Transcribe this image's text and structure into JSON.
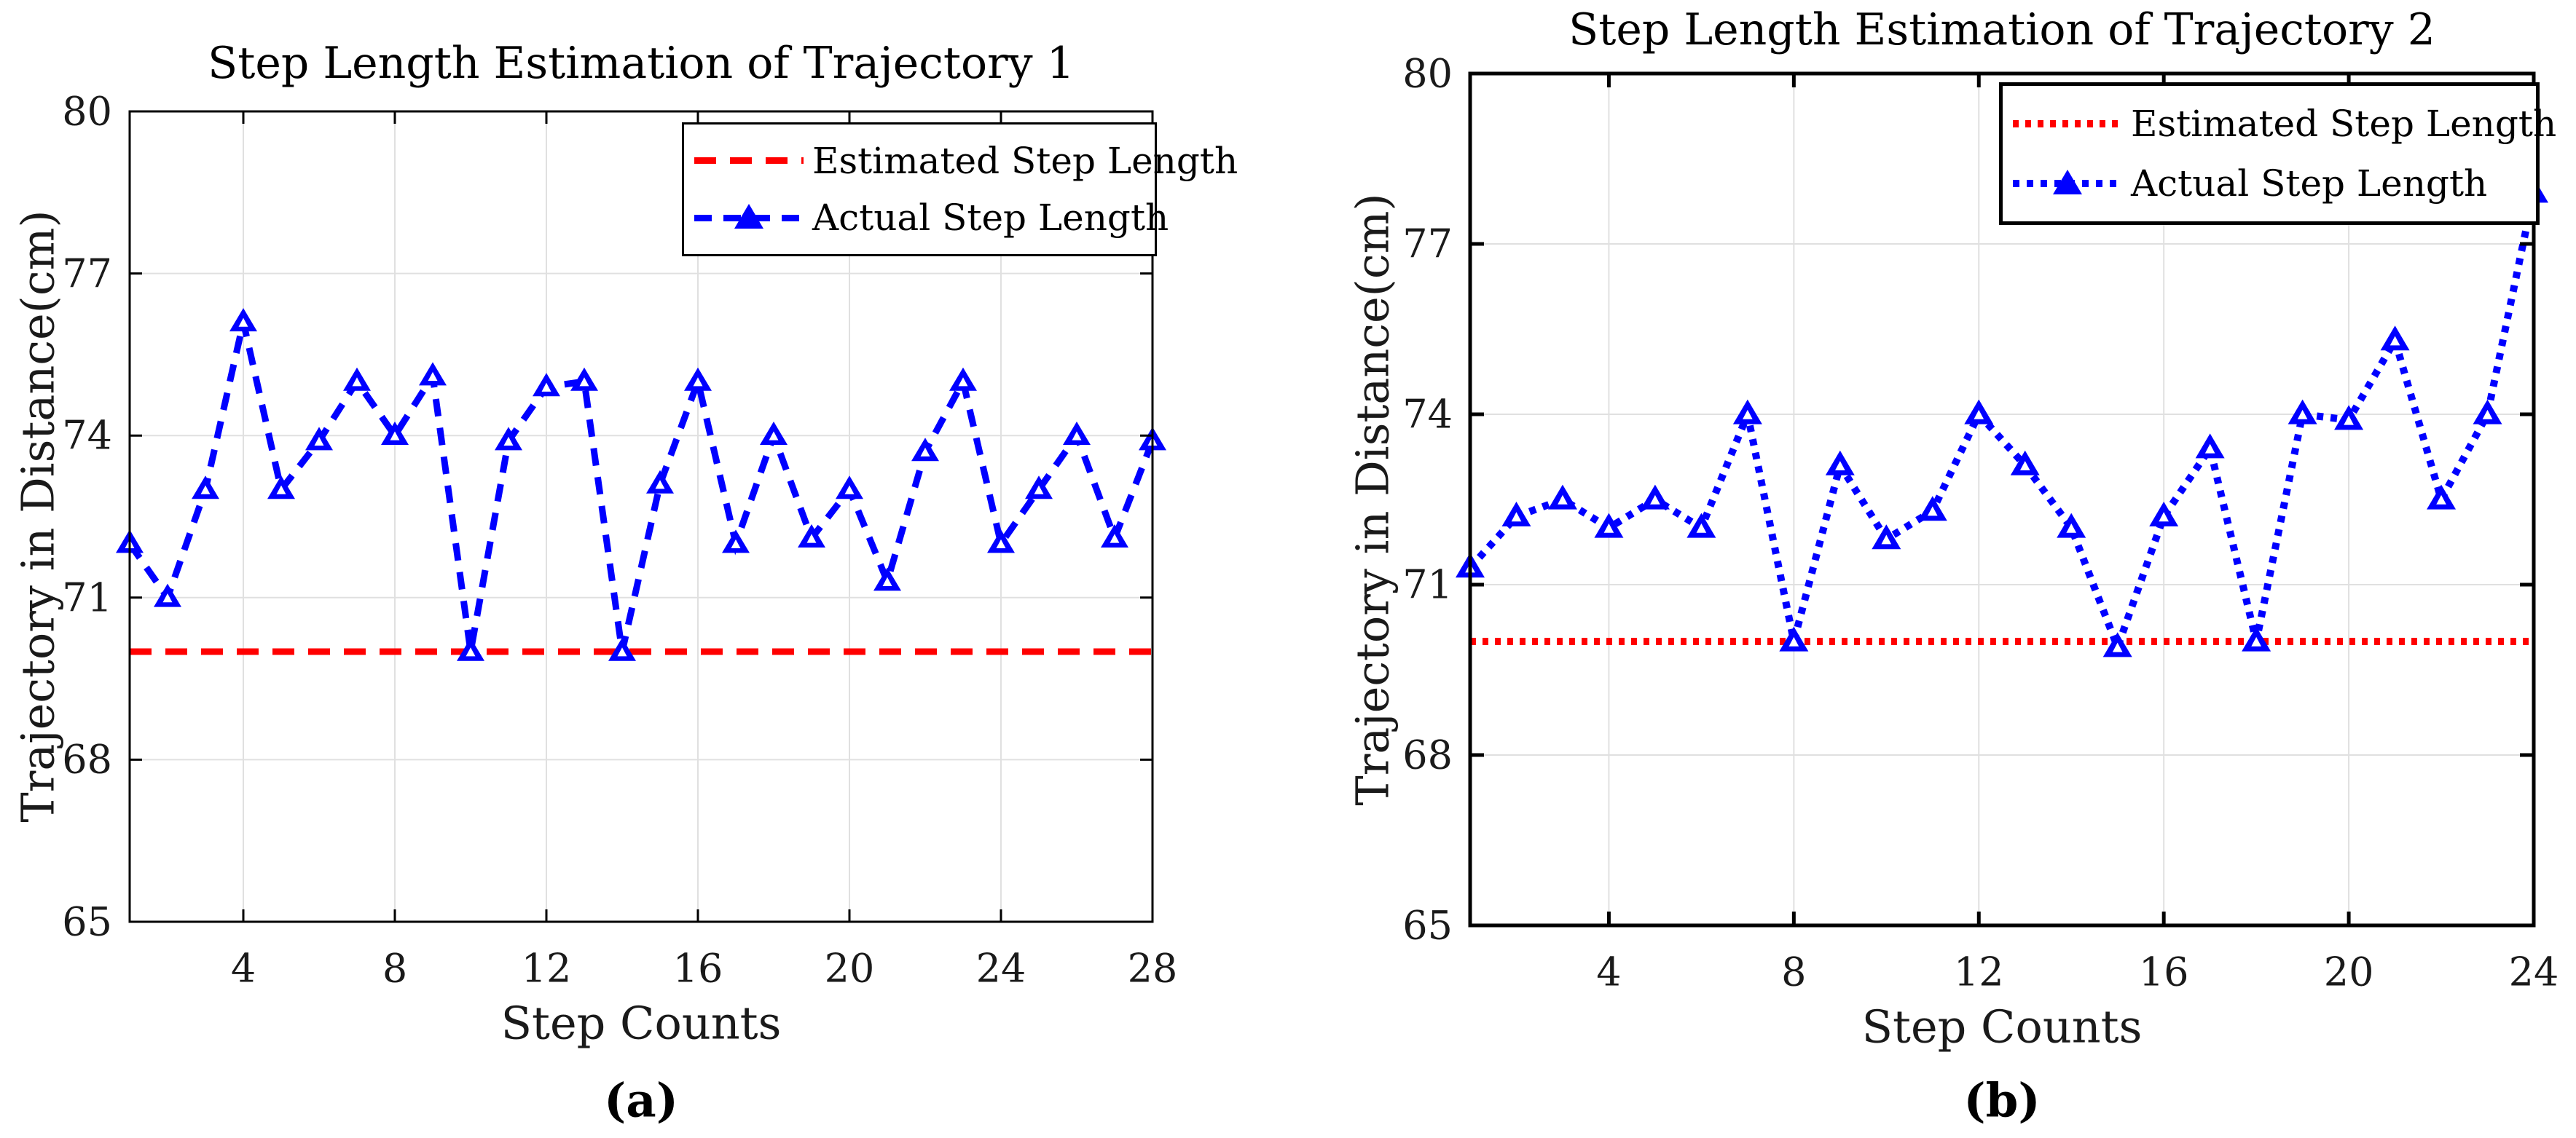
{
  "figure": {
    "background": "#ffffff",
    "description": "Two MATLAB-style line charts comparing estimated vs actual step length for two trajectories"
  },
  "colors": {
    "estimated_line": "#ff0000",
    "actual_line": "#0000ff",
    "grid": "#e0e0e0",
    "axis": "#000000",
    "text": "#1a1a1a"
  },
  "chart_data": [
    {
      "type": "line",
      "title": "Step Length Estimation of Trajectory 1",
      "xlabel": "Step Counts",
      "ylabel": "Trajectory in Distance(cm)",
      "sublabel": "(a)",
      "xlim": [
        1,
        28
      ],
      "ylim": [
        65,
        80
      ],
      "x_ticks": [
        4,
        8,
        12,
        16,
        20,
        24,
        28
      ],
      "y_ticks": [
        65,
        68,
        71,
        74,
        77,
        80
      ],
      "grid": true,
      "legend": {
        "position": "top-right",
        "entries": [
          "Estimated Step Length",
          "Actual Step Length"
        ]
      },
      "series": [
        {
          "name": "Estimated Step Length",
          "kind": "hline",
          "style": "dashed",
          "color": "#ff0000",
          "value": 70.0
        },
        {
          "name": "Actual Step Length",
          "kind": "line",
          "style": "dashed",
          "marker": "triangle-up",
          "color": "#0000ff",
          "x": [
            1,
            2,
            3,
            4,
            5,
            6,
            7,
            8,
            9,
            10,
            11,
            12,
            13,
            14,
            15,
            16,
            17,
            18,
            19,
            20,
            21,
            22,
            23,
            24,
            25,
            26,
            27,
            28
          ],
          "values": [
            72.0,
            71.0,
            73.0,
            76.1,
            73.0,
            73.9,
            75.0,
            74.0,
            75.1,
            70.0,
            73.9,
            74.9,
            75.0,
            70.0,
            73.1,
            75.0,
            72.0,
            74.0,
            72.1,
            73.0,
            71.3,
            73.7,
            75.0,
            72.0,
            73.0,
            74.0,
            72.1,
            73.9
          ]
        }
      ]
    },
    {
      "type": "line",
      "title": "Step Length Estimation of Trajectory 2",
      "xlabel": "Step Counts",
      "ylabel": "Trajectory in Distance(cm)",
      "sublabel": "(b)",
      "xlim": [
        1,
        24
      ],
      "ylim": [
        65,
        80
      ],
      "x_ticks": [
        4,
        8,
        12,
        16,
        20,
        24
      ],
      "y_ticks": [
        65,
        68,
        71,
        74,
        77,
        80
      ],
      "grid": true,
      "legend": {
        "position": "top-right",
        "entries": [
          "Estimated Step Length",
          "Actual Step Length"
        ]
      },
      "series": [
        {
          "name": "Estimated Step Length",
          "kind": "hline",
          "style": "dotted",
          "color": "#ff0000",
          "value": 70.0
        },
        {
          "name": "Actual Step Length",
          "kind": "line",
          "style": "dotted",
          "marker": "triangle-up",
          "color": "#0000ff",
          "x": [
            1,
            2,
            3,
            4,
            5,
            6,
            7,
            8,
            9,
            10,
            11,
            12,
            13,
            14,
            15,
            16,
            17,
            18,
            19,
            20,
            21,
            22,
            23,
            24
          ],
          "values": [
            71.3,
            72.2,
            72.5,
            72.0,
            72.5,
            72.0,
            74.0,
            70.0,
            73.1,
            71.8,
            72.3,
            74.0,
            73.1,
            72.0,
            69.9,
            72.2,
            73.4,
            70.0,
            74.0,
            73.9,
            75.3,
            72.5,
            74.0,
            77.9
          ]
        }
      ]
    }
  ]
}
